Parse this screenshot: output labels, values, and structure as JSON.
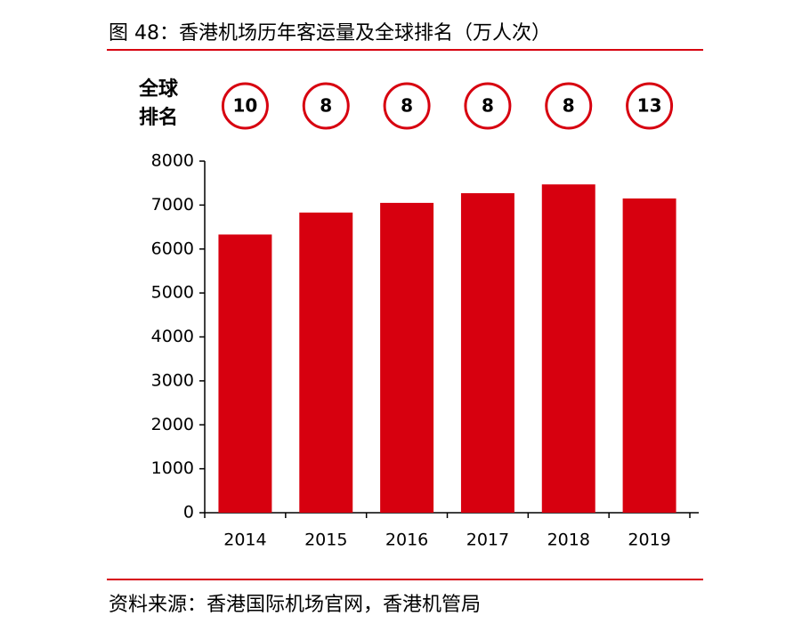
{
  "chart_data": {
    "type": "bar",
    "title": "图 48：香港机场历年客运量及全球排名（万人次）",
    "rank_label": [
      "全球",
      "排名"
    ],
    "ranks": [
      10,
      8,
      8,
      8,
      8,
      13
    ],
    "categories": [
      "2014",
      "2015",
      "2016",
      "2017",
      "2018",
      "2019"
    ],
    "values": [
      6330,
      6830,
      7050,
      7270,
      7470,
      7150
    ],
    "color": "#d7000f",
    "ylim": [
      0,
      8000
    ],
    "yticks": [
      0,
      1000,
      2000,
      3000,
      4000,
      5000,
      6000,
      7000,
      8000
    ],
    "source": "资料来源：香港国际机场官网，香港机管局"
  }
}
